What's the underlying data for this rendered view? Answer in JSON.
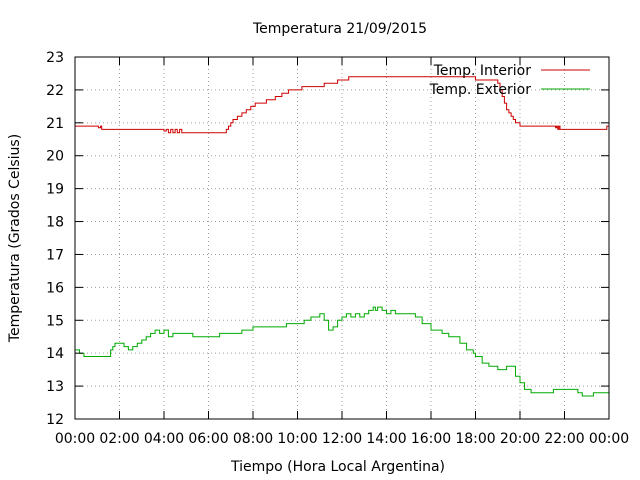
{
  "chart_data": {
    "type": "line",
    "title": "Temperatura 21/09/2015",
    "xlabel": "Tiempo (Hora Local Argentina)",
    "ylabel": "Temperatura (Grados Celsius)",
    "xlim": [
      0,
      24
    ],
    "ylim": [
      12,
      23
    ],
    "xticks": [
      0,
      2,
      4,
      6,
      8,
      10,
      12,
      14,
      16,
      18,
      20,
      22,
      24
    ],
    "xtick_labels": [
      "00:00",
      "02:00",
      "04:00",
      "06:00",
      "08:00",
      "10:00",
      "12:00",
      "14:00",
      "16:00",
      "18:00",
      "20:00",
      "22:00",
      "00:00"
    ],
    "yticks": [
      12,
      13,
      14,
      15,
      16,
      17,
      18,
      19,
      20,
      21,
      22,
      23
    ],
    "ytick_labels": [
      "12",
      "13",
      "14",
      "15",
      "16",
      "17",
      "18",
      "19",
      "20",
      "21",
      "22",
      "23"
    ],
    "grid": true,
    "legend_position": "top-right",
    "series": [
      {
        "name": "Temp. Interior",
        "color": "#cc0000",
        "x": [
          0,
          1.0,
          1.05,
          1.15,
          1.2,
          2.5,
          3.95,
          4.0,
          4.1,
          4.2,
          4.3,
          4.4,
          4.5,
          4.6,
          4.7,
          4.8,
          5.0,
          6.7,
          6.8,
          6.9,
          7.0,
          7.1,
          7.3,
          7.5,
          7.7,
          7.9,
          8.1,
          8.3,
          8.6,
          9.0,
          9.3,
          9.6,
          9.9,
          10.2,
          10.6,
          11.2,
          11.8,
          12.0,
          12.3,
          12.7,
          14.0,
          15.0,
          16.0,
          17.0,
          18.0,
          18.3,
          18.6,
          18.9,
          19.0,
          19.1,
          19.2,
          19.3,
          19.4,
          19.5,
          19.6,
          19.7,
          19.8,
          20.0,
          20.5,
          21.5,
          21.6,
          21.65,
          21.7,
          21.75,
          21.8,
          23.0,
          23.8,
          23.9,
          24.0
        ],
        "values": [
          20.9,
          20.9,
          20.85,
          20.9,
          20.8,
          20.8,
          20.8,
          20.75,
          20.8,
          20.7,
          20.8,
          20.7,
          20.8,
          20.7,
          20.8,
          20.7,
          20.7,
          20.7,
          20.8,
          20.9,
          21.0,
          21.1,
          21.2,
          21.3,
          21.4,
          21.5,
          21.6,
          21.6,
          21.7,
          21.8,
          21.9,
          22.0,
          22.0,
          22.1,
          22.1,
          22.2,
          22.3,
          22.3,
          22.4,
          22.4,
          22.4,
          22.4,
          22.4,
          22.4,
          22.3,
          22.3,
          22.3,
          22.3,
          22.2,
          22.0,
          21.8,
          21.6,
          21.4,
          21.3,
          21.2,
          21.1,
          21.0,
          20.9,
          20.9,
          20.9,
          20.85,
          20.9,
          20.8,
          20.9,
          20.8,
          20.8,
          20.8,
          20.9,
          20.8
        ]
      },
      {
        "name": "Temp. Exterior",
        "color": "#00aa00",
        "x": [
          0,
          0.2,
          0.4,
          1.5,
          1.6,
          1.7,
          1.8,
          1.9,
          2.0,
          2.2,
          2.4,
          2.6,
          2.8,
          3.0,
          3.2,
          3.4,
          3.6,
          3.8,
          4.0,
          4.2,
          4.4,
          4.5,
          4.6,
          5.0,
          5.3,
          6.0,
          6.5,
          7.0,
          7.5,
          8.0,
          8.5,
          9.0,
          9.5,
          10.0,
          10.3,
          10.6,
          10.8,
          11.0,
          11.2,
          11.4,
          11.5,
          11.6,
          11.8,
          12.0,
          12.2,
          12.4,
          12.6,
          12.8,
          13.0,
          13.2,
          13.4,
          13.5,
          13.6,
          13.8,
          14.0,
          14.2,
          14.4,
          14.6,
          15.0,
          15.3,
          15.6,
          16.0,
          16.2,
          16.5,
          16.8,
          17.0,
          17.3,
          17.6,
          17.9,
          18.0,
          18.3,
          18.6,
          19.0,
          19.4,
          19.6,
          19.8,
          20.0,
          20.2,
          20.5,
          21.0,
          21.5,
          22.0,
          22.3,
          22.6,
          22.8,
          23.0,
          23.3,
          23.6,
          24.0
        ],
        "values": [
          14.1,
          14.0,
          13.9,
          13.9,
          14.1,
          14.2,
          14.3,
          14.3,
          14.3,
          14.2,
          14.1,
          14.2,
          14.3,
          14.4,
          14.5,
          14.6,
          14.7,
          14.6,
          14.7,
          14.5,
          14.6,
          14.6,
          14.6,
          14.6,
          14.5,
          14.5,
          14.6,
          14.6,
          14.7,
          14.8,
          14.8,
          14.8,
          14.9,
          14.9,
          15.0,
          15.1,
          15.1,
          15.2,
          15.0,
          14.7,
          14.7,
          14.8,
          15.0,
          15.1,
          15.2,
          15.1,
          15.2,
          15.1,
          15.2,
          15.3,
          15.4,
          15.3,
          15.4,
          15.3,
          15.2,
          15.3,
          15.2,
          15.2,
          15.2,
          15.1,
          14.9,
          14.7,
          14.7,
          14.6,
          14.5,
          14.5,
          14.3,
          14.1,
          14.0,
          13.9,
          13.7,
          13.6,
          13.5,
          13.6,
          13.6,
          13.3,
          13.1,
          12.9,
          12.8,
          12.8,
          12.9,
          12.9,
          12.9,
          12.8,
          12.7,
          12.7,
          12.8,
          12.8,
          12.9
        ]
      }
    ]
  }
}
